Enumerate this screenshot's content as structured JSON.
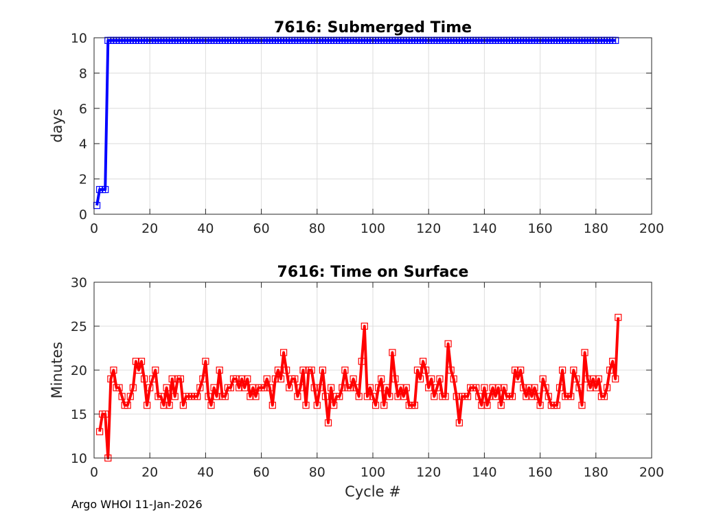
{
  "footer": "Argo WHOI 11-Jan-2026",
  "chart_data": [
    {
      "type": "line",
      "title": "7616: Submerged Time",
      "xlabel": "",
      "ylabel": "days",
      "xlim": [
        0,
        200
      ],
      "ylim": [
        0,
        10
      ],
      "xticks": [
        0,
        20,
        40,
        60,
        80,
        100,
        120,
        140,
        160,
        180,
        200
      ],
      "yticks": [
        0,
        2,
        4,
        6,
        8,
        10
      ],
      "grid": true,
      "color": "#0000ff",
      "marker": "square",
      "series": [
        {
          "x_start": 1,
          "x_end": 187,
          "y_head": [
            0.5,
            1.4,
            1.4,
            1.4,
            9.85
          ],
          "y_rest": 9.85
        }
      ]
    },
    {
      "type": "line",
      "title": "7616: Time on Surface",
      "xlabel": "Cycle #",
      "ylabel": "Minutes",
      "xlim": [
        0,
        200
      ],
      "ylim": [
        10,
        30
      ],
      "xticks": [
        0,
        20,
        40,
        60,
        80,
        100,
        120,
        140,
        160,
        180,
        200
      ],
      "yticks": [
        10,
        15,
        20,
        25,
        30
      ],
      "grid": true,
      "color": "#ff0000",
      "marker": "square",
      "series": [
        {
          "x_start": 2,
          "y": [
            13,
            15,
            15,
            10,
            19,
            20,
            18,
            18,
            17,
            16,
            16,
            17,
            18,
            21,
            20,
            21,
            19,
            16,
            18,
            19,
            20,
            17,
            17,
            16,
            18,
            16,
            19,
            17,
            19,
            19,
            16,
            17,
            17,
            17,
            17,
            17,
            18,
            19,
            21,
            17,
            16,
            18,
            17,
            20,
            17,
            17,
            18,
            18,
            19,
            19,
            18,
            19,
            18,
            19,
            17,
            18,
            17,
            18,
            18,
            18,
            19,
            18,
            16,
            19,
            20,
            19,
            22,
            20,
            18,
            19,
            19,
            17,
            18,
            20,
            16,
            20,
            20,
            18,
            16,
            18,
            20,
            17,
            14,
            18,
            16,
            17,
            17,
            18,
            20,
            18,
            18,
            19,
            18,
            17,
            21,
            25,
            17,
            18,
            17,
            16,
            18,
            19,
            16,
            18,
            17,
            22,
            19,
            17,
            18,
            17,
            18,
            16,
            16,
            16,
            20,
            19,
            21,
            20,
            18,
            19,
            17,
            18,
            19,
            17,
            17,
            23,
            20,
            19,
            17,
            14,
            17,
            17,
            17,
            18,
            18,
            18,
            17,
            16,
            18,
            16,
            17,
            18,
            17,
            18,
            16,
            18,
            17,
            17,
            17,
            20,
            19,
            20,
            18,
            17,
            18,
            17,
            18,
            17,
            16,
            19,
            18,
            17,
            16,
            16,
            16,
            18,
            20,
            17,
            17,
            17,
            20,
            19,
            18,
            16,
            22,
            19,
            18,
            19,
            18,
            19,
            17,
            17,
            18,
            20,
            21,
            19,
            26
          ]
        }
      ]
    }
  ]
}
